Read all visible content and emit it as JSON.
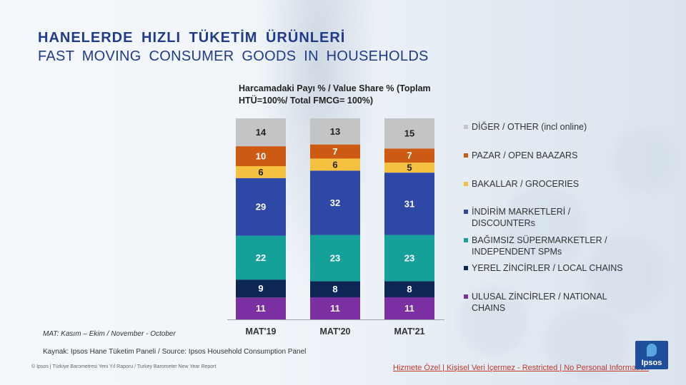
{
  "header": {
    "title_tr": "HANELERDE HIZLI TÜKETİM ÜRÜNLERİ",
    "title_en": "FAST MOVING CONSUMER GOODS IN HOUSEHOLDS"
  },
  "chart_data": {
    "type": "bar",
    "stacked": true,
    "title": "Harcamadaki Payı % / Value Share % (Toplam HTÜ=100%/ Total FMCG= 100%)",
    "categories": [
      "MAT'19",
      "MAT'20",
      "MAT'21"
    ],
    "series": [
      {
        "name": "ULUSAL ZİNCİRLER / NATIONAL CHAINS",
        "color": "#7b2fa0",
        "values": [
          11,
          11,
          11
        ]
      },
      {
        "name": "YEREL ZİNCİRLER / LOCAL CHAINS",
        "color": "#0d2656",
        "values": [
          9,
          8,
          8
        ]
      },
      {
        "name": "BAĞIMSIZ SÜPERMARKETLER / INDEPENDENT SPMs",
        "color": "#16a09a",
        "values": [
          22,
          23,
          23
        ]
      },
      {
        "name": "İNDİRİM MARKETLERİ / DISCOUNTERs",
        "color": "#2e48a5",
        "values": [
          29,
          32,
          31
        ]
      },
      {
        "name": "BAKALLAR / GROCERIES",
        "color": "#f6c141",
        "values": [
          6,
          6,
          5
        ]
      },
      {
        "name": "PAZAR / OPEN BAAZARS",
        "color": "#cc5a12",
        "values": [
          10,
          7,
          7
        ]
      },
      {
        "name": "DİĞER / OTHER (incl online)",
        "color": "#c3c4c6",
        "values": [
          14,
          13,
          15
        ]
      }
    ],
    "legend_position": "right",
    "grid": false
  },
  "notes": {
    "mat": "MAT: Kasım – Ekim  / November - October",
    "source": "Kaynak: Ipsos Hane Tüketim Paneli  / Source: Ipsos Household Consumption Panel",
    "copyright": "© Ipsos | Türkiye Barometresi Yeni Yıl Raporu / Turkey Barometer New Year Report",
    "restricted": "Hizmete Özel | Kişisel Veri İçermez - Restricted | No Personal Information"
  },
  "logo": {
    "text": "Ipsos"
  }
}
